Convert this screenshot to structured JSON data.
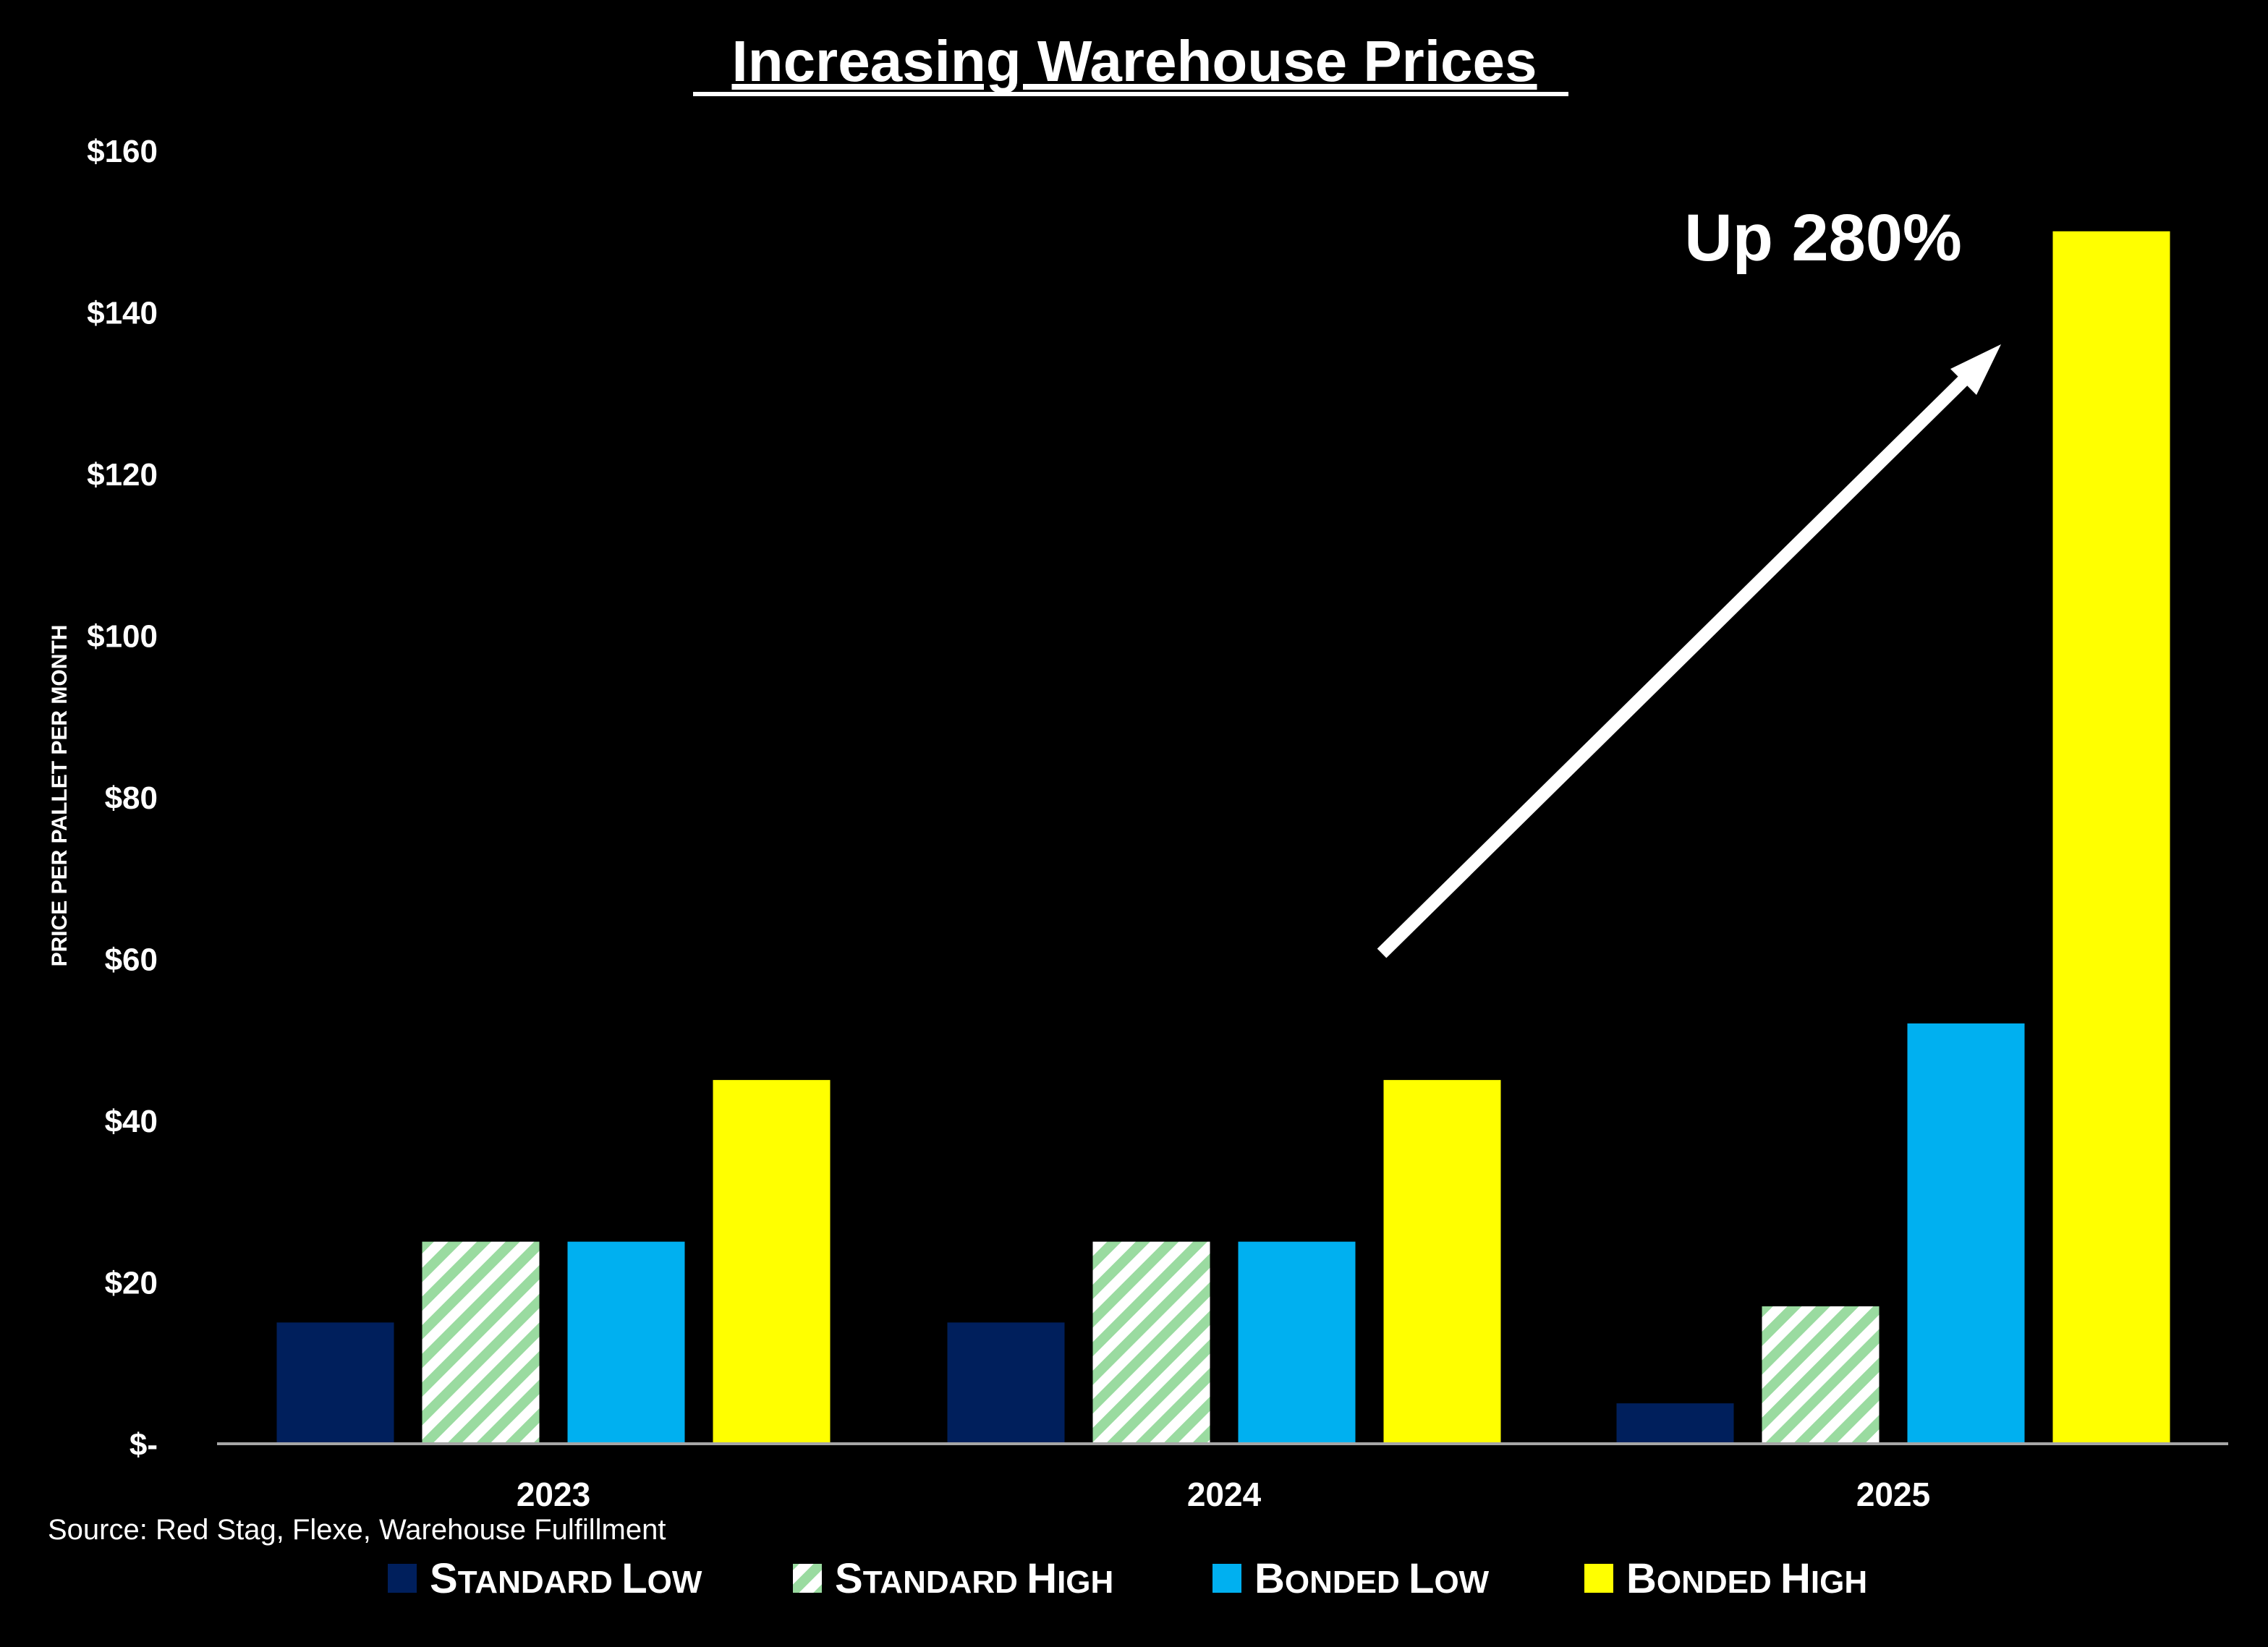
{
  "chart_data": {
    "type": "bar",
    "title": "Increasing Warehouse Prices",
    "ylabel": "PRICE PER PALLET PER MONTH",
    "xlabel": "",
    "ylim": [
      0,
      160
    ],
    "yticks": [
      {
        "value": 0,
        "label": "$-"
      },
      {
        "value": 20,
        "label": "$20"
      },
      {
        "value": 40,
        "label": "$40"
      },
      {
        "value": 60,
        "label": "$60"
      },
      {
        "value": 80,
        "label": "$80"
      },
      {
        "value": 100,
        "label": "$100"
      },
      {
        "value": 120,
        "label": "$120"
      },
      {
        "value": 140,
        "label": "$140"
      },
      {
        "value": 160,
        "label": "$160"
      }
    ],
    "categories": [
      "2023",
      "2024",
      "2025"
    ],
    "series": [
      {
        "name": "Standard Low",
        "legend_first": "S",
        "legend_rest": "TANDARD ",
        "legend_first2": "L",
        "legend_rest2": "OW",
        "color": "#001F5C",
        "pattern": "solid",
        "values": [
          15,
          15,
          5
        ]
      },
      {
        "name": "Standard High",
        "legend_first": "S",
        "legend_rest": "TANDARD ",
        "legend_first2": "H",
        "legend_rest2": "IGH",
        "color": "#9ADBA0",
        "pattern": "diagonal-stripes",
        "values": [
          25,
          25,
          17
        ]
      },
      {
        "name": "Bonded Low",
        "legend_first": "B",
        "legend_rest": "ONDED ",
        "legend_first2": "L",
        "legend_rest2": "OW",
        "color": "#00B0F0",
        "pattern": "solid",
        "values": [
          25,
          25,
          52
        ]
      },
      {
        "name": "Bonded High",
        "legend_first": "B",
        "legend_rest": "ONDED ",
        "legend_first2": "H",
        "legend_rest2": "IGH",
        "color": "#FFFF00",
        "pattern": "solid",
        "values": [
          45,
          45,
          150
        ]
      }
    ],
    "annotation": {
      "text": "Up 280%",
      "arrow": true
    },
    "legend_position": "bottom",
    "grid": false
  },
  "source": "Source: Red Stag, Flexe, Warehouse Fulfillment",
  "colors": {
    "background": "#000000",
    "axis": "#A6A6A6",
    "text": "#FFFFFF"
  }
}
